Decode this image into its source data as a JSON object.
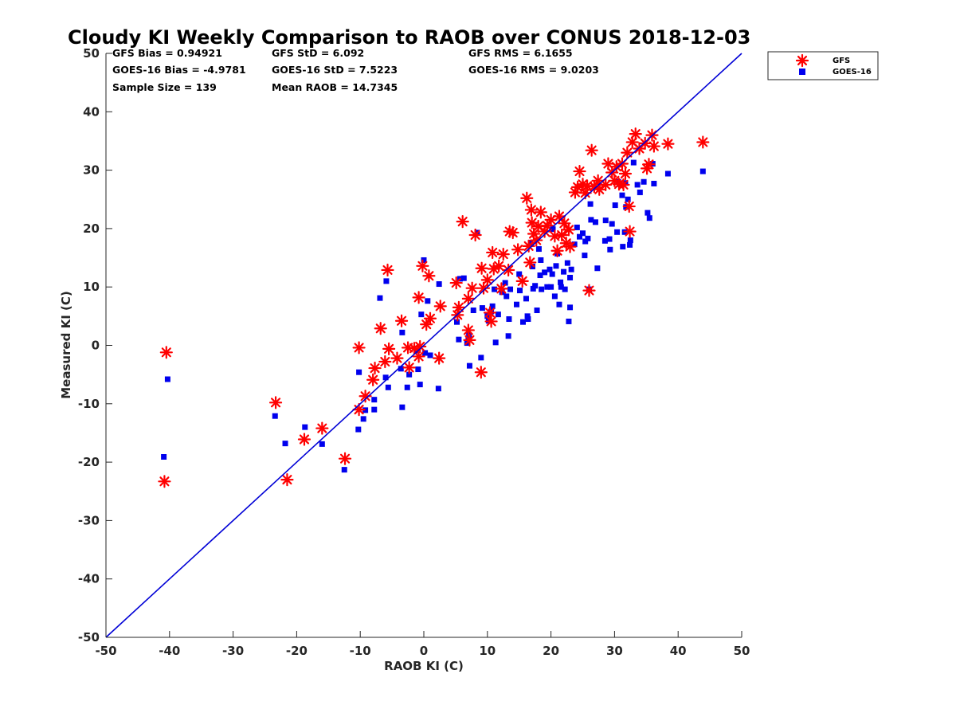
{
  "chart_data": {
    "type": "scatter",
    "title": "Cloudy KI Weekly Comparison to RAOB over CONUS 2018-12-03",
    "xlabel": "RAOB KI (C)",
    "ylabel": "Measured KI (C)",
    "xlim": [
      -50,
      50
    ],
    "ylim": [
      -50,
      50
    ],
    "xticks": [
      "-50",
      "-40",
      "-30",
      "-20",
      "-10",
      "0",
      "10",
      "20",
      "30",
      "40",
      "50"
    ],
    "yticks": [
      "50",
      "40",
      "30",
      "20",
      "10",
      "0",
      "-10",
      "-20",
      "-30",
      "-40",
      "-50"
    ],
    "grid": false,
    "legend_position": "top-right (outside axes)",
    "reference_line": {
      "name": "1:1 line",
      "color": "#0000d6",
      "from": [
        -50,
        -50
      ],
      "to": [
        50,
        50
      ]
    },
    "stats": {
      "gfs_bias": "GFS Bias = 0.94921",
      "gfs_std": "GFS StD = 6.092",
      "gfs_rms": "GFS RMS = 6.1655",
      "goes_bias": "GOES-16 Bias = -4.9781",
      "goes_std": "GOES-16 StD = 7.5223",
      "goes_rms": "GOES-16 RMS = 9.0203",
      "sample_size": "Sample Size = 139",
      "mean_raob": "Mean RAOB = 14.7345"
    },
    "series": [
      {
        "name": "GFS",
        "color": "#ff0000",
        "marker": "asterisk",
        "points": [
          [
            -40.5,
            -1.2
          ],
          [
            -40.8,
            -23.3
          ],
          [
            -23.3,
            -9.8
          ],
          [
            -21.5,
            -23
          ],
          [
            -18.8,
            -16.1
          ],
          [
            -16,
            -14.2
          ],
          [
            -12.4,
            -19.4
          ],
          [
            -10.2,
            -0.4
          ],
          [
            -10.2,
            -11
          ],
          [
            -9.2,
            -8.7
          ],
          [
            -8,
            -5.9
          ],
          [
            -7.7,
            -3.9
          ],
          [
            -6.8,
            2.9
          ],
          [
            -6.1,
            -2.8
          ],
          [
            -5.7,
            12.9
          ],
          [
            -5.5,
            -0.6
          ],
          [
            -4.2,
            -2.2
          ],
          [
            -3.5,
            4.2
          ],
          [
            -2.5,
            -0.4
          ],
          [
            -2.3,
            -3.8
          ],
          [
            -1.5,
            -0.5
          ],
          [
            -0.8,
            8.2
          ],
          [
            -0.8,
            -1.9
          ],
          [
            -0.6,
            -0.2
          ],
          [
            -0.2,
            13.6
          ],
          [
            0.4,
            3.6
          ],
          [
            0.8,
            11.9
          ],
          [
            1,
            4.6
          ],
          [
            2.4,
            -2.2
          ],
          [
            2.6,
            6.7
          ],
          [
            5.1,
            10.7
          ],
          [
            5.3,
            5.2
          ],
          [
            5.5,
            6.5
          ],
          [
            6.1,
            21.2
          ],
          [
            7,
            8
          ],
          [
            7,
            2.6
          ],
          [
            7.2,
            0.9
          ],
          [
            7.6,
            9.8
          ],
          [
            8.1,
            18.9
          ],
          [
            9,
            -4.6
          ],
          [
            9.1,
            13.2
          ],
          [
            9.4,
            9.8
          ],
          [
            10,
            11.2
          ],
          [
            10.4,
            5.6
          ],
          [
            10.6,
            4.1
          ],
          [
            10.8,
            15.9
          ],
          [
            11,
            13.1
          ],
          [
            11.8,
            13.6
          ],
          [
            12.2,
            9.7
          ],
          [
            12.5,
            15.6
          ],
          [
            13.3,
            12.9
          ],
          [
            13.5,
            19.5
          ],
          [
            14,
            19.3
          ],
          [
            14.8,
            16.4
          ],
          [
            15.5,
            11
          ],
          [
            16.2,
            25.2
          ],
          [
            16.5,
            17
          ],
          [
            16.7,
            14.2
          ],
          [
            16.9,
            23.2
          ],
          [
            17,
            21
          ],
          [
            17.3,
            19.1
          ],
          [
            17.7,
            18
          ],
          [
            18,
            20.4
          ],
          [
            18.4,
            22.8
          ],
          [
            19,
            19.5
          ],
          [
            19.4,
            20.5
          ],
          [
            20,
            21.5
          ],
          [
            20.6,
            18.7
          ],
          [
            21,
            16.2
          ],
          [
            21.3,
            22.1
          ],
          [
            21.7,
            18.9
          ],
          [
            22.1,
            20.9
          ],
          [
            22.4,
            17.5
          ],
          [
            22.8,
            19.8
          ],
          [
            23,
            16.9
          ],
          [
            23.8,
            26.2
          ],
          [
            24.2,
            27.1
          ],
          [
            24.5,
            29.8
          ],
          [
            25,
            27.6
          ],
          [
            25.4,
            26.1
          ],
          [
            25.7,
            27.3
          ],
          [
            26,
            9.4
          ],
          [
            26.4,
            33.4
          ],
          [
            26.8,
            27.2
          ],
          [
            27.4,
            28.2
          ],
          [
            27.6,
            26.7
          ],
          [
            28.6,
            27.5
          ],
          [
            29,
            31.1
          ],
          [
            29.6,
            29.6
          ],
          [
            30,
            28.2
          ],
          [
            30.3,
            30.6
          ],
          [
            30.7,
            27.6
          ],
          [
            31.2,
            31.1
          ],
          [
            31.4,
            27.5
          ],
          [
            31.7,
            29.4
          ],
          [
            32,
            33
          ],
          [
            32.3,
            23.8
          ],
          [
            32.4,
            19.5
          ],
          [
            32.8,
            34.8
          ],
          [
            33.3,
            36.2
          ],
          [
            33.9,
            33.7
          ],
          [
            34.8,
            34.6
          ],
          [
            35.1,
            30.3
          ],
          [
            35.4,
            31
          ],
          [
            35.9,
            36
          ],
          [
            36.2,
            34.1
          ],
          [
            38.4,
            34.5
          ],
          [
            43.9,
            34.8
          ]
        ]
      },
      {
        "name": "GOES-16",
        "color": "#0000ee",
        "marker": "square",
        "points": [
          [
            -40.3,
            -5.8
          ],
          [
            -40.9,
            -19.1
          ],
          [
            -23.4,
            -12.1
          ],
          [
            -21.8,
            -16.8
          ],
          [
            -18.7,
            -14
          ],
          [
            -16,
            -16.9
          ],
          [
            -12.5,
            -21.3
          ],
          [
            -10.2,
            -4.6
          ],
          [
            -10.3,
            -14.4
          ],
          [
            -9.5,
            -12.6
          ],
          [
            -9.2,
            -11.1
          ],
          [
            -7.8,
            -9.3
          ],
          [
            -7.8,
            -11
          ],
          [
            -6.9,
            8.1
          ],
          [
            -6,
            -5.5
          ],
          [
            -5.9,
            11
          ],
          [
            -5.6,
            -7.2
          ],
          [
            -3.6,
            -4
          ],
          [
            -3.4,
            -10.6
          ],
          [
            -3.4,
            2.2
          ],
          [
            -2.6,
            -7.2
          ],
          [
            -2.3,
            -5
          ],
          [
            -1.2,
            -0.9
          ],
          [
            -0.9,
            -4.1
          ],
          [
            -0.6,
            -6.7
          ],
          [
            -0.4,
            5.3
          ],
          [
            0,
            14.6
          ],
          [
            0.2,
            -1.3
          ],
          [
            0.6,
            7.6
          ],
          [
            1,
            -1.7
          ],
          [
            2.4,
            10.5
          ],
          [
            2.3,
            -7.4
          ],
          [
            5.2,
            4
          ],
          [
            5.5,
            1
          ],
          [
            5.7,
            11.4
          ],
          [
            6.3,
            11.5
          ],
          [
            6.8,
            0.4
          ],
          [
            7,
            1
          ],
          [
            7.1,
            1.8
          ],
          [
            7.2,
            -3.5
          ],
          [
            7.8,
            6
          ],
          [
            8.4,
            19.3
          ],
          [
            9,
            -2.1
          ],
          [
            9.2,
            6.4
          ],
          [
            10,
            5
          ],
          [
            10.2,
            4.2
          ],
          [
            10.6,
            5.8
          ],
          [
            10.8,
            6.7
          ],
          [
            11.1,
            9.6
          ],
          [
            11.3,
            0.5
          ],
          [
            11.7,
            5.3
          ],
          [
            12.3,
            9.1
          ],
          [
            12.8,
            10.7
          ],
          [
            13,
            8.4
          ],
          [
            13.4,
            4.5
          ],
          [
            13.6,
            9.6
          ],
          [
            13.3,
            1.6
          ],
          [
            14.6,
            7
          ],
          [
            15,
            12.2
          ],
          [
            15.1,
            9.4
          ],
          [
            15.6,
            4
          ],
          [
            16.1,
            8
          ],
          [
            16.3,
            5
          ],
          [
            16.4,
            4.5
          ],
          [
            16.8,
            17.6
          ],
          [
            17.1,
            13.5
          ],
          [
            17.2,
            9.7
          ],
          [
            17.5,
            10.2
          ],
          [
            17.8,
            6
          ],
          [
            18.1,
            16.5
          ],
          [
            18.3,
            12
          ],
          [
            18.4,
            14.6
          ],
          [
            18.5,
            9.6
          ],
          [
            19,
            12.5
          ],
          [
            19.4,
            10
          ],
          [
            19.8,
            13
          ],
          [
            20,
            10
          ],
          [
            20.2,
            12.2
          ],
          [
            20.3,
            19.9
          ],
          [
            20.6,
            8.4
          ],
          [
            20.8,
            13.6
          ],
          [
            21,
            15.7
          ],
          [
            21.3,
            7
          ],
          [
            21.5,
            10.8
          ],
          [
            21.6,
            10
          ],
          [
            22,
            12.6
          ],
          [
            22.2,
            9.6
          ],
          [
            22.6,
            14.1
          ],
          [
            22.8,
            4.1
          ],
          [
            23,
            6.5
          ],
          [
            23,
            11.6
          ],
          [
            23.2,
            13
          ],
          [
            23.7,
            17.3
          ],
          [
            24.1,
            20.2
          ],
          [
            24.5,
            18.6
          ],
          [
            25,
            19.2
          ],
          [
            25.3,
            15.4
          ],
          [
            25.4,
            17.8
          ],
          [
            25.8,
            18.3
          ],
          [
            26,
            9.6
          ],
          [
            26.2,
            24.2
          ],
          [
            26.3,
            21.5
          ],
          [
            27,
            21.1
          ],
          [
            27.3,
            13.2
          ],
          [
            28.5,
            17.9
          ],
          [
            28.6,
            21.4
          ],
          [
            29.2,
            18.2
          ],
          [
            29.3,
            16.4
          ],
          [
            29.6,
            20.8
          ],
          [
            30.1,
            24
          ],
          [
            30.4,
            19.4
          ],
          [
            30.6,
            28
          ],
          [
            30.8,
            27.6
          ],
          [
            31.2,
            25.7
          ],
          [
            31.3,
            16.9
          ],
          [
            31.6,
            19.4
          ],
          [
            31.7,
            27.8
          ],
          [
            31.8,
            23.7
          ],
          [
            32.1,
            25
          ],
          [
            32.4,
            17.2
          ],
          [
            32.5,
            18
          ],
          [
            33,
            31.3
          ],
          [
            33.6,
            27.5
          ],
          [
            34,
            26.2
          ],
          [
            34.6,
            28
          ],
          [
            35.2,
            22.7
          ],
          [
            35.5,
            21.8
          ],
          [
            36,
            31.1
          ],
          [
            36.2,
            27.7
          ],
          [
            38.4,
            29.4
          ],
          [
            43.9,
            29.8
          ]
        ]
      }
    ]
  }
}
